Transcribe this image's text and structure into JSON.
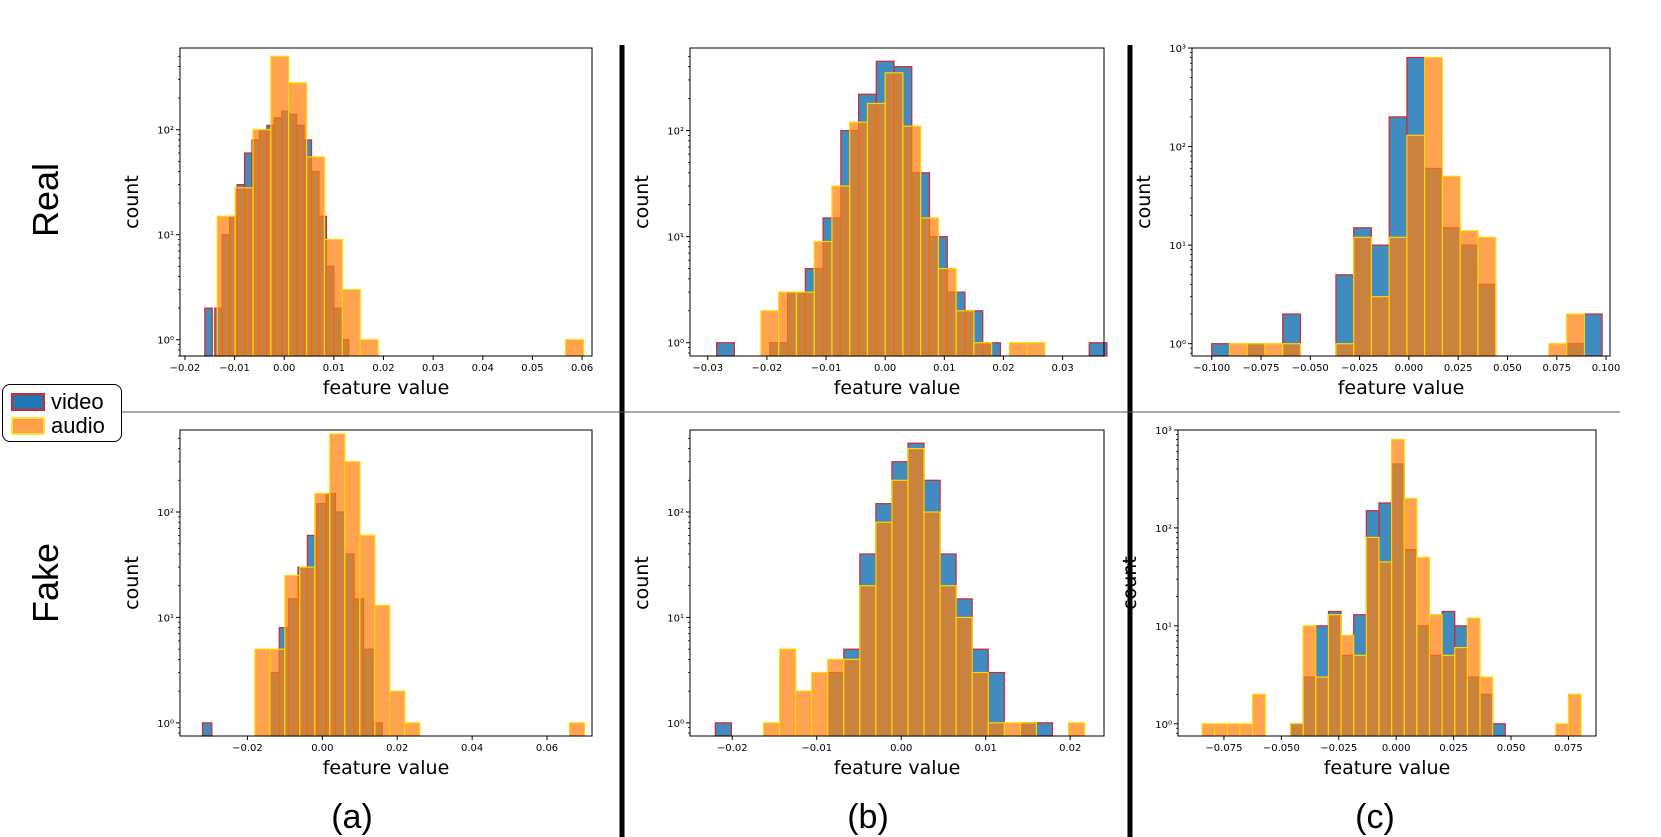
{
  "figure": {
    "row_labels": [
      "Real",
      "Fake"
    ],
    "captions": [
      "(a)",
      "(b)",
      "(c)"
    ],
    "legend": [
      {
        "label": "video",
        "fill": "#1f77b4",
        "edge": "#d62728"
      },
      {
        "label": "audio",
        "fill": "#ff7f0e",
        "edge": "#ffd700"
      }
    ]
  },
  "chart_data": [
    {
      "id": "a-real",
      "type": "histogram",
      "xlabel": "feature value",
      "ylabel": "count",
      "yscale": "log",
      "xlim": [
        -0.021,
        0.062
      ],
      "ylim": [
        0.7,
        600
      ],
      "xticks": [
        -0.02,
        -0.01,
        0.0,
        0.01,
        0.02,
        0.03,
        0.04,
        0.05,
        0.06
      ],
      "xticklabels": [
        "−0.02",
        "−0.01",
        "0.00",
        "0.01",
        "0.02",
        "0.03",
        "0.04",
        "0.05",
        "0.06"
      ],
      "yticks": [
        1,
        10,
        100
      ],
      "yticklabels": [
        "10⁰",
        "10¹",
        "10²"
      ],
      "series": [
        {
          "name": "video",
          "bin_width": 0.0015,
          "bins": [
            [
              -0.016,
              2
            ],
            [
              -0.014,
              2
            ],
            [
              -0.0125,
              10
            ],
            [
              -0.011,
              15
            ],
            [
              -0.0095,
              30
            ],
            [
              -0.008,
              60
            ],
            [
              -0.0065,
              80
            ],
            [
              -0.005,
              100
            ],
            [
              -0.0035,
              110
            ],
            [
              -0.002,
              130
            ],
            [
              -0.0005,
              150
            ],
            [
              0.001,
              140
            ],
            [
              0.0025,
              110
            ],
            [
              0.004,
              80
            ],
            [
              0.0055,
              40
            ],
            [
              0.007,
              15
            ],
            [
              0.0085,
              5
            ],
            [
              0.01,
              2
            ],
            [
              0.0115,
              1
            ]
          ]
        },
        {
          "name": "audio",
          "bin_width": 0.0036,
          "bins": [
            [
              -0.0135,
              15
            ],
            [
              -0.0099,
              28
            ],
            [
              -0.0063,
              100
            ],
            [
              -0.0027,
              500
            ],
            [
              0.0009,
              280
            ],
            [
              0.0045,
              55
            ],
            [
              0.0081,
              9
            ],
            [
              0.0117,
              3
            ],
            [
              0.0153,
              1
            ],
            [
              0.0567,
              1
            ]
          ]
        }
      ]
    },
    {
      "id": "b-real",
      "type": "histogram",
      "xlabel": "feature value",
      "ylabel": "count",
      "yscale": "log",
      "xlim": [
        -0.033,
        0.037
      ],
      "ylim": [
        0.75,
        600
      ],
      "xticks": [
        -0.03,
        -0.02,
        -0.01,
        0.0,
        0.01,
        0.02,
        0.03
      ],
      "xticklabels": [
        "−0.03",
        "−0.02",
        "−0.01",
        "0.00",
        "0.01",
        "0.02",
        "0.03"
      ],
      "yticks": [
        1,
        10,
        100
      ],
      "yticklabels": [
        "10⁰",
        "10¹",
        "10²"
      ],
      "series": [
        {
          "name": "video",
          "bin_width": 0.003,
          "bins": [
            [
              -0.0285,
              1
            ],
            [
              -0.0195,
              1
            ],
            [
              -0.0165,
              3
            ],
            [
              -0.0135,
              5
            ],
            [
              -0.0105,
              15
            ],
            [
              -0.0075,
              100
            ],
            [
              -0.0045,
              220
            ],
            [
              -0.0015,
              450
            ],
            [
              0.0015,
              400
            ],
            [
              0.0045,
              40
            ],
            [
              0.0075,
              10
            ],
            [
              0.0105,
              3
            ],
            [
              0.0135,
              2
            ],
            [
              0.0165,
              1
            ],
            [
              0.0345,
              1
            ]
          ]
        },
        {
          "name": "audio",
          "bin_width": 0.003,
          "bins": [
            [
              -0.021,
              2
            ],
            [
              -0.018,
              3
            ],
            [
              -0.015,
              3
            ],
            [
              -0.012,
              9
            ],
            [
              -0.009,
              30
            ],
            [
              -0.006,
              120
            ],
            [
              -0.003,
              180
            ],
            [
              0.0,
              350
            ],
            [
              0.003,
              110
            ],
            [
              0.006,
              15
            ],
            [
              0.009,
              5
            ],
            [
              0.012,
              2
            ],
            [
              0.015,
              1
            ],
            [
              0.021,
              1
            ],
            [
              0.024,
              1
            ]
          ]
        }
      ]
    },
    {
      "id": "c-real",
      "type": "histogram",
      "xlabel": "feature value",
      "ylabel": "count",
      "yscale": "log",
      "xlim": [
        -0.11,
        0.102
      ],
      "ylim": [
        0.75,
        1000
      ],
      "xticks": [
        -0.1,
        -0.075,
        -0.05,
        -0.025,
        0.0,
        0.025,
        0.05,
        0.075,
        0.1
      ],
      "xticklabels": [
        "−0.100",
        "−0.075",
        "−0.050",
        "−0.025",
        "0.000",
        "0.025",
        "0.050",
        "0.075",
        "0.100"
      ],
      "yticks": [
        1,
        10,
        100,
        1000
      ],
      "yticklabels": [
        "10⁰",
        "10¹",
        "10²",
        "10³"
      ],
      "series": [
        {
          "name": "video",
          "bin_width": 0.009,
          "bins": [
            [
              -0.1,
              1
            ],
            [
              -0.082,
              1
            ],
            [
              -0.064,
              2
            ],
            [
              -0.037,
              5
            ],
            [
              -0.028,
              15
            ],
            [
              -0.019,
              10
            ],
            [
              -0.01,
              200
            ],
            [
              -0.001,
              800
            ],
            [
              0.008,
              60
            ],
            [
              0.017,
              15
            ],
            [
              0.026,
              10
            ],
            [
              0.035,
              4
            ],
            [
              0.08,
              1
            ],
            [
              0.089,
              2
            ]
          ]
        },
        {
          "name": "audio",
          "bin_width": 0.009,
          "bins": [
            [
              -0.091,
              1
            ],
            [
              -0.082,
              1
            ],
            [
              -0.073,
              1
            ],
            [
              -0.064,
              1
            ],
            [
              -0.037,
              1
            ],
            [
              -0.028,
              12
            ],
            [
              -0.019,
              3
            ],
            [
              -0.01,
              12
            ],
            [
              -0.001,
              130
            ],
            [
              0.008,
              800
            ],
            [
              0.017,
              50
            ],
            [
              0.026,
              14
            ],
            [
              0.035,
              12
            ],
            [
              0.071,
              1
            ],
            [
              0.08,
              2
            ]
          ]
        }
      ]
    },
    {
      "id": "a-fake",
      "type": "histogram",
      "xlabel": "feature value",
      "ylabel": "count",
      "yscale": "log",
      "xlim": [
        -0.038,
        0.072
      ],
      "ylim": [
        0.75,
        600
      ],
      "xticks": [
        -0.02,
        0.0,
        0.02,
        0.04,
        0.06
      ],
      "xticklabels": [
        "−0.02",
        "0.00",
        "0.02",
        "0.04",
        "0.06"
      ],
      "yticks": [
        1,
        10,
        100
      ],
      "yticklabels": [
        "10⁰",
        "10¹",
        "10²"
      ],
      "series": [
        {
          "name": "video",
          "bin_width": 0.0025,
          "bins": [
            [
              -0.032,
              1
            ],
            [
              -0.014,
              3
            ],
            [
              -0.0115,
              8
            ],
            [
              -0.009,
              15
            ],
            [
              -0.0065,
              30
            ],
            [
              -0.004,
              60
            ],
            [
              -0.0015,
              120
            ],
            [
              0.001,
              150
            ],
            [
              0.0035,
              100
            ],
            [
              0.006,
              40
            ],
            [
              0.0085,
              15
            ],
            [
              0.011,
              5
            ],
            [
              0.0135,
              1
            ]
          ]
        },
        {
          "name": "audio",
          "bin_width": 0.004,
          "bins": [
            [
              -0.018,
              5
            ],
            [
              -0.014,
              5
            ],
            [
              -0.01,
              25
            ],
            [
              -0.006,
              30
            ],
            [
              -0.002,
              150
            ],
            [
              0.002,
              550
            ],
            [
              0.006,
              300
            ],
            [
              0.01,
              60
            ],
            [
              0.014,
              13
            ],
            [
              0.018,
              2
            ],
            [
              0.022,
              1
            ],
            [
              0.066,
              1
            ]
          ]
        }
      ]
    },
    {
      "id": "b-fake",
      "type": "histogram",
      "xlabel": "feature value",
      "ylabel": "count",
      "yscale": "log",
      "xlim": [
        -0.025,
        0.024
      ],
      "ylim": [
        0.75,
        600
      ],
      "xticks": [
        -0.02,
        -0.01,
        0.0,
        0.01,
        0.02
      ],
      "xticklabels": [
        "−0.02",
        "−0.01",
        "0.00",
        "0.01",
        "0.02"
      ],
      "yticks": [
        1,
        10,
        100
      ],
      "yticklabels": [
        "10⁰",
        "10¹",
        "10²"
      ],
      "series": [
        {
          "name": "video",
          "bin_width": 0.0019,
          "bins": [
            [
              -0.022,
              1
            ],
            [
              -0.0087,
              3
            ],
            [
              -0.0068,
              5
            ],
            [
              -0.0049,
              40
            ],
            [
              -0.003,
              120
            ],
            [
              -0.0011,
              300
            ],
            [
              0.0008,
              450
            ],
            [
              0.0027,
              200
            ],
            [
              0.0046,
              40
            ],
            [
              0.0065,
              15
            ],
            [
              0.0084,
              5
            ],
            [
              0.0103,
              3
            ],
            [
              0.0141,
              1
            ],
            [
              0.016,
              1
            ]
          ]
        },
        {
          "name": "audio",
          "bin_width": 0.0019,
          "bins": [
            [
              -0.0163,
              1
            ],
            [
              -0.0144,
              5
            ],
            [
              -0.0125,
              2
            ],
            [
              -0.0106,
              3
            ],
            [
              -0.0087,
              4
            ],
            [
              -0.0068,
              4
            ],
            [
              -0.0049,
              20
            ],
            [
              -0.003,
              80
            ],
            [
              -0.0011,
              200
            ],
            [
              0.0008,
              400
            ],
            [
              0.0027,
              100
            ],
            [
              0.0046,
              20
            ],
            [
              0.0065,
              10
            ],
            [
              0.0084,
              3
            ],
            [
              0.0103,
              1
            ],
            [
              0.0122,
              1
            ],
            [
              0.0141,
              1
            ],
            [
              0.0198,
              1
            ]
          ]
        }
      ]
    },
    {
      "id": "c-fake",
      "type": "histogram",
      "xlabel": "feature value",
      "ylabel": "count",
      "yscale": "log",
      "xlim": [
        -0.095,
        0.087
      ],
      "ylim": [
        0.75,
        1000
      ],
      "xticks": [
        -0.075,
        -0.05,
        -0.025,
        0.0,
        0.025,
        0.05,
        0.075
      ],
      "xticklabels": [
        "−0.075",
        "−0.050",
        "−0.025",
        "0.000",
        "0.025",
        "0.050",
        "0.075"
      ],
      "yticks": [
        1,
        10,
        100,
        1000
      ],
      "yticklabels": [
        "10⁰",
        "10¹",
        "10²",
        "10³"
      ],
      "series": [
        {
          "name": "video",
          "bin_width": 0.0055,
          "bins": [
            [
              -0.046,
              1
            ],
            [
              -0.0405,
              3
            ],
            [
              -0.035,
              10
            ],
            [
              -0.0295,
              14
            ],
            [
              -0.024,
              5
            ],
            [
              -0.0185,
              13
            ],
            [
              -0.013,
              150
            ],
            [
              -0.0075,
              180
            ],
            [
              -0.002,
              450
            ],
            [
              0.0035,
              60
            ],
            [
              0.009,
              10
            ],
            [
              0.0145,
              5
            ],
            [
              0.02,
              14
            ],
            [
              0.0255,
              10
            ],
            [
              0.031,
              3
            ],
            [
              0.0365,
              2
            ],
            [
              0.042,
              1
            ]
          ]
        },
        {
          "name": "audio",
          "bin_width": 0.0055,
          "bins": [
            [
              -0.0845,
              1
            ],
            [
              -0.079,
              1
            ],
            [
              -0.0735,
              1
            ],
            [
              -0.068,
              1
            ],
            [
              -0.0625,
              2
            ],
            [
              -0.046,
              1
            ],
            [
              -0.0405,
              10
            ],
            [
              -0.035,
              3
            ],
            [
              -0.0295,
              13
            ],
            [
              -0.024,
              8
            ],
            [
              -0.0185,
              5
            ],
            [
              -0.013,
              80
            ],
            [
              -0.0075,
              45
            ],
            [
              -0.002,
              800
            ],
            [
              0.0035,
              200
            ],
            [
              0.009,
              50
            ],
            [
              0.0145,
              13
            ],
            [
              0.02,
              5
            ],
            [
              0.0255,
              6
            ],
            [
              0.031,
              12
            ],
            [
              0.0365,
              3
            ],
            [
              0.0695,
              1
            ],
            [
              0.075,
              2
            ]
          ]
        }
      ]
    }
  ]
}
